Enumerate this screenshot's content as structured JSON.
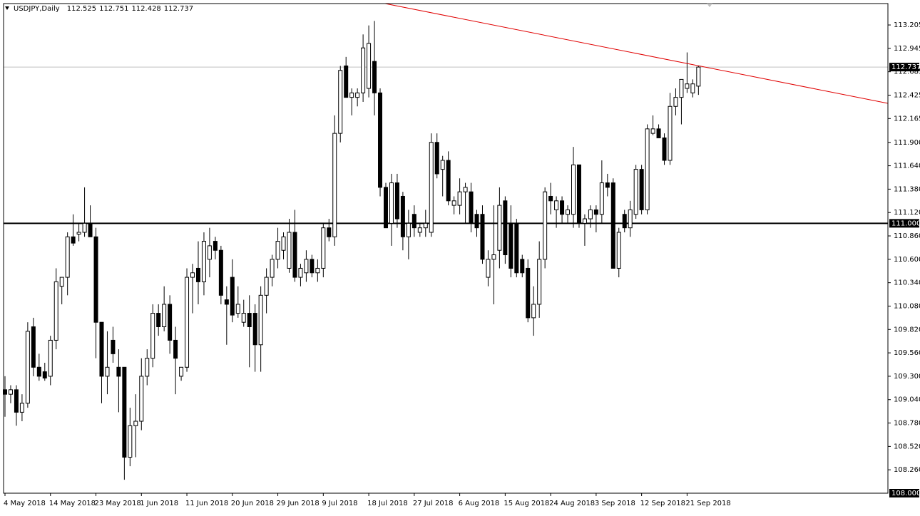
{
  "chart_data": {
    "type": "candlestick",
    "symbol": "USDJPY,Daily",
    "up_color": "#ffffff",
    "down_color": "#000000",
    "outline_color": "#000000",
    "ylim": [
      108.0,
      113.443
    ],
    "yticks": [
      {
        "value": 108.26,
        "label": "108.260"
      },
      {
        "value": 108.52,
        "label": "108.520"
      },
      {
        "value": 108.78,
        "label": "108.780"
      },
      {
        "value": 109.04,
        "label": "109.040"
      },
      {
        "value": 109.3,
        "label": "109.300"
      },
      {
        "value": 109.56,
        "label": "109.560"
      },
      {
        "value": 109.82,
        "label": "109.820"
      },
      {
        "value": 110.08,
        "label": "110.080"
      },
      {
        "value": 110.34,
        "label": "110.340"
      },
      {
        "value": 110.6,
        "label": "110.600"
      },
      {
        "value": 110.86,
        "label": "110.860"
      },
      {
        "value": 111.12,
        "label": "111.120"
      },
      {
        "value": 111.38,
        "label": "111.380"
      },
      {
        "value": 111.64,
        "label": "111.640"
      },
      {
        "value": 111.9,
        "label": "111.900"
      },
      {
        "value": 112.165,
        "label": "112.165"
      },
      {
        "value": 112.425,
        "label": "112.425"
      },
      {
        "value": 112.685,
        "label": "112.685"
      },
      {
        "value": 112.945,
        "label": "112.945"
      },
      {
        "value": 113.205,
        "label": "113.205"
      }
    ],
    "bottom_label": {
      "value": 108.0,
      "label": "108.000"
    },
    "hlines": [
      {
        "value": 112.737,
        "label": "112.737",
        "color": "#c0c0c0",
        "width": 1
      },
      {
        "value": 111.0,
        "label": "111.000",
        "color": "#000000",
        "width": 2
      }
    ],
    "categories": [
      "4 May 2018",
      null,
      null,
      null,
      null,
      null,
      null,
      null,
      "14 May 2018",
      null,
      null,
      null,
      null,
      null,
      null,
      null,
      "23 May 2018",
      null,
      null,
      null,
      null,
      null,
      null,
      null,
      "1 Jun 2018",
      null,
      null,
      null,
      null,
      null,
      null,
      null,
      "11 Jun 2018",
      null,
      null,
      null,
      null,
      null,
      null,
      null,
      "20 Jun 2018",
      null,
      null,
      null,
      null,
      null,
      null,
      null,
      "29 Jun 2018",
      null,
      null,
      null,
      null,
      null,
      null,
      null,
      "9 Jul 2018",
      null,
      null,
      null,
      null,
      null,
      null,
      null,
      "18 Jul 2018",
      null,
      null,
      null,
      null,
      null,
      null,
      null,
      "27 Jul 2018",
      null,
      null,
      null,
      null,
      null,
      null,
      null,
      "6 Aug 2018",
      null,
      null,
      null,
      null,
      null,
      null,
      null,
      "15 Aug 2018",
      null,
      null,
      null,
      null,
      null,
      null,
      null,
      "24 Aug 2018",
      null,
      null,
      null,
      null,
      null,
      null,
      null,
      "3 Sep 2018",
      null,
      null,
      null,
      null,
      null,
      null,
      null,
      "12 Sep 2018",
      null,
      null,
      null,
      null,
      null,
      null,
      null,
      "21 Sep 2018",
      null,
      null
    ],
    "ohlc": [
      [
        109.15,
        109.3,
        108.85,
        109.1
      ],
      [
        109.1,
        109.2,
        109.0,
        109.15
      ],
      [
        109.15,
        109.2,
        108.75,
        108.9
      ],
      [
        108.9,
        109.1,
        108.8,
        109.0
      ],
      [
        109.0,
        109.9,
        108.95,
        109.8
      ],
      [
        109.85,
        109.95,
        109.3,
        109.4
      ],
      [
        109.4,
        109.55,
        109.25,
        109.3
      ],
      [
        109.35,
        109.45,
        109.25,
        109.28
      ],
      [
        109.3,
        109.75,
        109.2,
        109.7
      ],
      [
        109.7,
        110.5,
        109.6,
        110.35
      ],
      [
        110.3,
        110.4,
        110.1,
        110.4
      ],
      [
        110.4,
        110.9,
        110.2,
        110.85
      ],
      [
        110.85,
        111.1,
        110.75,
        110.78
      ],
      [
        110.88,
        111.0,
        110.8,
        110.9
      ],
      [
        110.9,
        111.4,
        110.85,
        111.0
      ],
      [
        111.0,
        111.2,
        110.85,
        110.85
      ],
      [
        110.85,
        110.95,
        109.5,
        109.9
      ],
      [
        109.9,
        109.9,
        109.0,
        109.3
      ],
      [
        109.3,
        109.8,
        109.1,
        109.4
      ],
      [
        109.7,
        109.85,
        109.45,
        109.55
      ],
      [
        109.4,
        109.6,
        108.9,
        109.3
      ],
      [
        109.4,
        109.4,
        108.15,
        108.4
      ],
      [
        108.4,
        108.95,
        108.3,
        108.75
      ],
      [
        108.75,
        109.1,
        108.4,
        108.8
      ],
      [
        108.8,
        109.5,
        108.7,
        109.3
      ],
      [
        109.3,
        109.6,
        109.2,
        109.5
      ],
      [
        109.5,
        110.1,
        109.4,
        110.0
      ],
      [
        110.0,
        110.1,
        109.75,
        109.85
      ],
      [
        109.85,
        110.3,
        109.8,
        110.1
      ],
      [
        110.1,
        110.2,
        109.55,
        109.7
      ],
      [
        109.7,
        109.85,
        109.1,
        109.5
      ],
      [
        109.3,
        109.4,
        109.25,
        109.4
      ],
      [
        109.4,
        110.5,
        109.35,
        110.4
      ],
      [
        110.4,
        110.55,
        110.0,
        110.45
      ],
      [
        110.5,
        110.8,
        110.1,
        110.35
      ],
      [
        110.35,
        110.9,
        110.2,
        110.8
      ],
      [
        110.6,
        110.95,
        110.4,
        110.75
      ],
      [
        110.8,
        110.85,
        110.6,
        110.7
      ],
      [
        110.7,
        110.75,
        110.1,
        110.2
      ],
      [
        110.15,
        110.3,
        109.65,
        110.1
      ],
      [
        110.4,
        110.6,
        109.9,
        109.98
      ],
      [
        110.0,
        110.3,
        109.95,
        110.1
      ],
      [
        109.9,
        110.15,
        109.85,
        110.0
      ],
      [
        110.0,
        110.2,
        109.4,
        109.85
      ],
      [
        110.0,
        110.1,
        109.35,
        109.65
      ],
      [
        109.65,
        110.3,
        109.35,
        110.2
      ],
      [
        110.2,
        110.5,
        110.0,
        110.4
      ],
      [
        110.4,
        110.65,
        110.3,
        110.6
      ],
      [
        110.6,
        110.95,
        110.5,
        110.8
      ],
      [
        110.7,
        110.9,
        110.6,
        110.85
      ],
      [
        110.5,
        111.05,
        110.45,
        110.9
      ],
      [
        110.9,
        111.15,
        110.35,
        110.4
      ],
      [
        110.4,
        110.55,
        110.3,
        110.5
      ],
      [
        110.45,
        110.7,
        110.35,
        110.6
      ],
      [
        110.6,
        110.65,
        110.4,
        110.45
      ],
      [
        110.45,
        110.6,
        110.35,
        110.5
      ],
      [
        110.5,
        111.0,
        110.4,
        110.95
      ],
      [
        110.95,
        111.05,
        110.8,
        110.85
      ],
      [
        110.85,
        112.2,
        110.75,
        112.0
      ],
      [
        112.0,
        112.75,
        111.9,
        112.7
      ],
      [
        112.75,
        112.85,
        112.4,
        112.4
      ],
      [
        112.4,
        112.5,
        112.2,
        112.45
      ],
      [
        112.4,
        112.5,
        112.3,
        112.45
      ],
      [
        112.45,
        113.1,
        112.35,
        112.95
      ],
      [
        112.5,
        113.2,
        112.4,
        113.0
      ],
      [
        112.8,
        113.25,
        112.2,
        112.45
      ],
      [
        112.45,
        112.5,
        111.3,
        111.4
      ],
      [
        111.4,
        111.45,
        110.95,
        110.95
      ],
      [
        111.0,
        111.55,
        110.75,
        111.45
      ],
      [
        111.45,
        111.55,
        110.95,
        111.05
      ],
      [
        111.3,
        111.35,
        110.7,
        110.85
      ],
      [
        110.85,
        111.15,
        110.6,
        111.0
      ],
      [
        111.1,
        111.2,
        110.85,
        110.95
      ],
      [
        110.9,
        111.0,
        110.85,
        110.95
      ],
      [
        110.95,
        111.15,
        110.85,
        111.0
      ],
      [
        110.9,
        112.0,
        110.85,
        111.9
      ],
      [
        111.9,
        112.0,
        111.5,
        111.55
      ],
      [
        111.6,
        111.75,
        111.3,
        111.7
      ],
      [
        111.7,
        111.8,
        111.2,
        111.25
      ],
      [
        111.2,
        111.3,
        111.1,
        111.25
      ],
      [
        111.2,
        111.5,
        111.1,
        111.35
      ],
      [
        111.35,
        111.45,
        111.0,
        111.4
      ],
      [
        111.35,
        111.45,
        110.9,
        111.0
      ],
      [
        111.1,
        111.15,
        110.85,
        110.95
      ],
      [
        111.1,
        111.2,
        110.55,
        110.6
      ],
      [
        110.4,
        110.7,
        110.3,
        110.6
      ],
      [
        110.6,
        111.2,
        110.1,
        110.65
      ],
      [
        110.7,
        111.4,
        110.5,
        111.2
      ],
      [
        111.25,
        111.3,
        110.55,
        110.65
      ],
      [
        111.0,
        111.2,
        110.4,
        110.5
      ],
      [
        111.0,
        111.05,
        110.4,
        110.45
      ],
      [
        110.6,
        110.65,
        110.4,
        110.45
      ],
      [
        110.5,
        110.6,
        109.9,
        109.95
      ],
      [
        109.95,
        110.3,
        109.75,
        110.1
      ],
      [
        110.1,
        110.8,
        109.95,
        110.6
      ],
      [
        110.6,
        111.4,
        110.5,
        111.35
      ],
      [
        111.3,
        111.45,
        111.1,
        111.25
      ],
      [
        111.15,
        111.3,
        110.95,
        111.25
      ],
      [
        111.25,
        111.3,
        111.0,
        111.1
      ],
      [
        111.1,
        111.2,
        111.0,
        111.15
      ],
      [
        111.1,
        111.85,
        110.95,
        111.65
      ],
      [
        111.65,
        111.65,
        110.95,
        111.0
      ],
      [
        111.0,
        111.1,
        110.75,
        111.05
      ],
      [
        111.05,
        111.2,
        110.95,
        111.15
      ],
      [
        111.15,
        111.2,
        110.9,
        111.1
      ],
      [
        111.1,
        111.7,
        111.0,
        111.45
      ],
      [
        111.45,
        111.55,
        111.3,
        111.4
      ],
      [
        111.45,
        111.5,
        110.5,
        110.5
      ],
      [
        110.5,
        110.95,
        110.4,
        110.9
      ],
      [
        111.1,
        111.15,
        110.9,
        110.95
      ],
      [
        110.95,
        111.25,
        110.85,
        111.15
      ],
      [
        111.1,
        111.65,
        111.05,
        111.6
      ],
      [
        111.6,
        111.65,
        111.1,
        111.15
      ],
      [
        111.15,
        112.1,
        111.1,
        112.05
      ],
      [
        112.0,
        112.2,
        111.98,
        112.05
      ],
      [
        112.05,
        112.1,
        111.95,
        111.95
      ],
      [
        111.95,
        112.0,
        111.65,
        111.7
      ],
      [
        111.7,
        112.45,
        111.65,
        112.3
      ],
      [
        112.3,
        112.5,
        112.2,
        112.4
      ],
      [
        112.4,
        112.6,
        112.1,
        112.6
      ],
      [
        112.5,
        112.9,
        112.45,
        112.55
      ],
      [
        112.45,
        112.6,
        112.4,
        112.55
      ],
      [
        112.525,
        112.751,
        112.428,
        112.737
      ]
    ]
  }
}
